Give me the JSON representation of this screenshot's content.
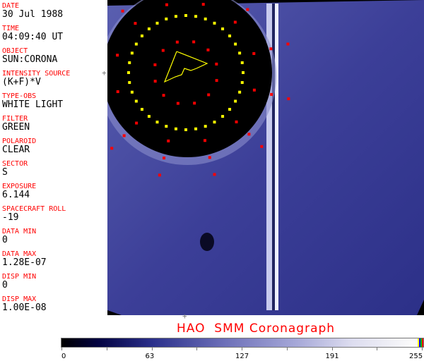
{
  "header_fields": [
    {
      "label": "DATE",
      "value": "30 Jul 1988"
    },
    {
      "label": "TIME",
      "value": "04:09:40 UT"
    },
    {
      "label": "OBJECT",
      "value": "SUN:CORONA"
    },
    {
      "label": "INTENSITY SOURCE",
      "value": "(K+F)*V"
    },
    {
      "label": "TYPE-OBS",
      "value": "WHITE LIGHT"
    },
    {
      "label": "FILTER",
      "value": "GREEN"
    },
    {
      "label": "POLAROID",
      "value": "CLEAR"
    },
    {
      "label": "SECTOR",
      "value": "S"
    },
    {
      "label": "EXPOSURE",
      "value": "6.144"
    },
    {
      "label": "SPACECRAFT ROLL",
      "value": "-19"
    },
    {
      "label": "DATA MIN",
      "value": "0"
    },
    {
      "label": "DATA MAX",
      "value": "1.28E-07"
    },
    {
      "label": "DISP MIN",
      "value": "0"
    },
    {
      "label": "DISP MAX",
      "value": "1.00E-08"
    }
  ],
  "title": "HAO  SMM Coronagraph",
  "colorbar": {
    "ticks": [
      "0",
      "63",
      "127",
      "191",
      "255"
    ],
    "end_colors": [
      "#ffff00",
      "#0000ff",
      "#00c000",
      "#ff0000"
    ]
  },
  "colors": {
    "label": "#ff0000",
    "field": "#3a3f9a",
    "occulter": "#000000",
    "grid_yellow": "#ffff00",
    "grid_red": "#ff0000"
  }
}
